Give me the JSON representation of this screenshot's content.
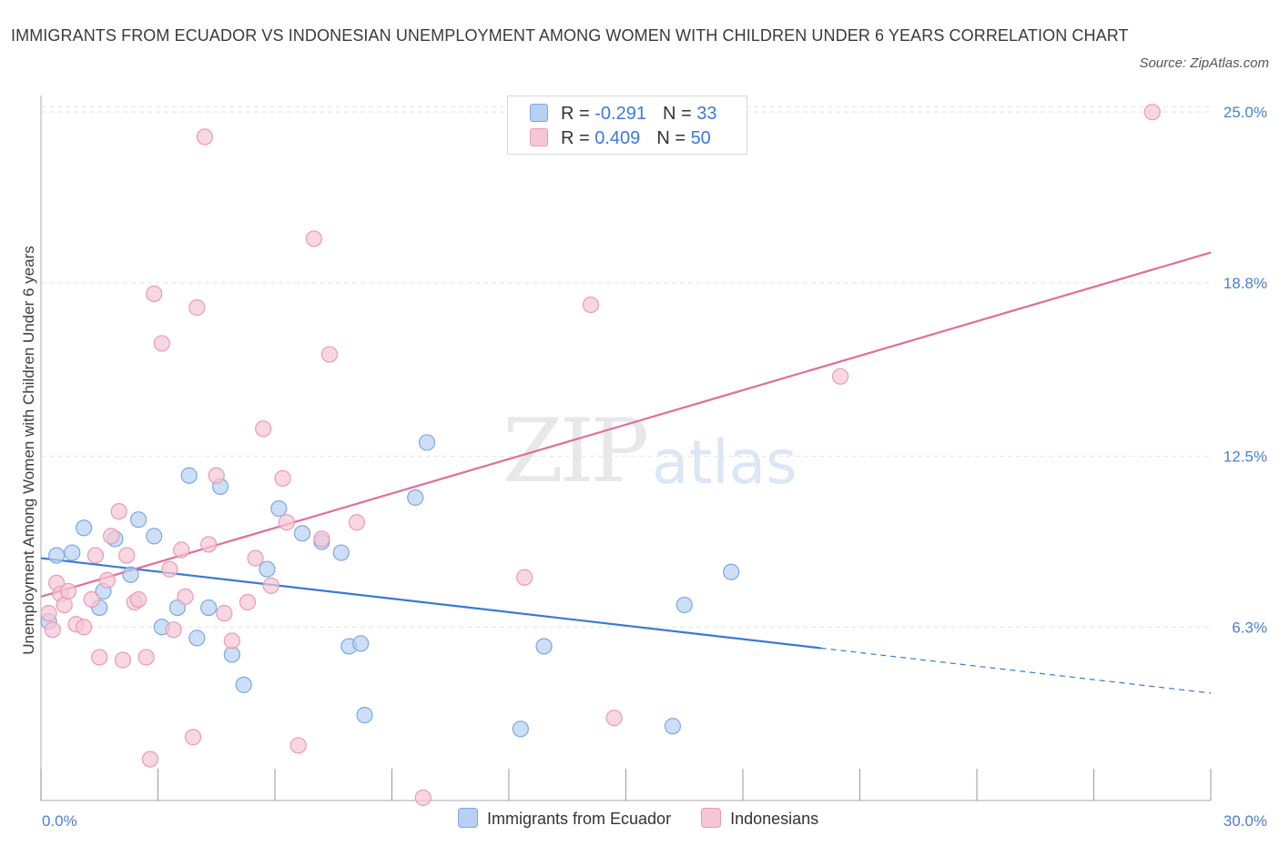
{
  "title": "IMMIGRANTS FROM ECUADOR VS INDONESIAN UNEMPLOYMENT AMONG WOMEN WITH CHILDREN UNDER 6 YEARS CORRELATION CHART",
  "source": "Source: ZipAtlas.com",
  "watermark": {
    "zip": "ZIP",
    "atlas": "atlas"
  },
  "colors": {
    "blue_fill": "#b8d1f3",
    "blue_stroke": "#7aa7e6",
    "blue_line": "#3a78d4",
    "pink_fill": "#f7c6d6",
    "pink_stroke": "#e99ab5",
    "pink_line": "#e06f98",
    "tick_label": "#4a7fd0",
    "grid": "#e3e3e3"
  },
  "legend": {
    "rows": [
      {
        "r_label": "R =",
        "r_value": "-0.291",
        "n_label": "N =",
        "n_value": "33"
      },
      {
        "r_label": "R =",
        "r_value": "0.409",
        "n_label": "N =",
        "n_value": "50"
      }
    ]
  },
  "chart_data": {
    "type": "scatter",
    "title": "IMMIGRANTS FROM ECUADOR VS INDONESIAN UNEMPLOYMENT AMONG WOMEN WITH CHILDREN UNDER 6 YEARS CORRELATION CHART",
    "xlabel": "",
    "ylabel": "Unemployment Among Women with Children Under 6 years",
    "xlim": [
      0,
      30
    ],
    "ylim": [
      0,
      25.6
    ],
    "x_tick_labels": [
      {
        "value": 0,
        "label": "0.0%"
      },
      {
        "value": 30,
        "label": "30.0%"
      }
    ],
    "y_tick_labels": [
      {
        "value": 6.3,
        "label": "6.3%"
      },
      {
        "value": 12.5,
        "label": "12.5%"
      },
      {
        "value": 18.8,
        "label": "18.8%"
      },
      {
        "value": 25.0,
        "label": "25.0%"
      }
    ],
    "grid": true,
    "legend_position": "bottom",
    "series": [
      {
        "name": "Immigrants from Ecuador",
        "color": "#b8d1f3",
        "points": [
          [
            0.2,
            6.5
          ],
          [
            0.4,
            8.9
          ],
          [
            0.8,
            9.0
          ],
          [
            1.1,
            9.9
          ],
          [
            1.5,
            7.0
          ],
          [
            1.6,
            7.6
          ],
          [
            1.9,
            9.5
          ],
          [
            2.3,
            8.2
          ],
          [
            2.5,
            10.2
          ],
          [
            2.9,
            9.6
          ],
          [
            3.1,
            6.3
          ],
          [
            3.5,
            7.0
          ],
          [
            3.8,
            11.8
          ],
          [
            4.0,
            5.9
          ],
          [
            4.3,
            7.0
          ],
          [
            4.6,
            11.4
          ],
          [
            4.9,
            5.3
          ],
          [
            5.2,
            4.2
          ],
          [
            5.8,
            8.4
          ],
          [
            6.1,
            10.6
          ],
          [
            6.7,
            9.7
          ],
          [
            7.2,
            9.4
          ],
          [
            7.7,
            9.0
          ],
          [
            7.9,
            5.6
          ],
          [
            8.2,
            5.7
          ],
          [
            8.3,
            3.1
          ],
          [
            9.6,
            11.0
          ],
          [
            9.9,
            13.0
          ],
          [
            12.3,
            2.6
          ],
          [
            12.9,
            5.6
          ],
          [
            16.2,
            2.7
          ],
          [
            16.5,
            7.1
          ],
          [
            17.7,
            8.3
          ]
        ]
      },
      {
        "name": "Indonesians",
        "color": "#f7c6d6",
        "points": [
          [
            0.2,
            6.8
          ],
          [
            0.3,
            6.2
          ],
          [
            0.4,
            7.9
          ],
          [
            0.5,
            7.5
          ],
          [
            0.6,
            7.1
          ],
          [
            0.7,
            7.6
          ],
          [
            0.9,
            6.4
          ],
          [
            1.1,
            6.3
          ],
          [
            1.3,
            7.3
          ],
          [
            1.4,
            8.9
          ],
          [
            1.5,
            5.2
          ],
          [
            1.7,
            8.0
          ],
          [
            1.8,
            9.6
          ],
          [
            2.0,
            10.5
          ],
          [
            2.1,
            5.1
          ],
          [
            2.2,
            8.9
          ],
          [
            2.4,
            7.2
          ],
          [
            2.5,
            7.3
          ],
          [
            2.7,
            5.2
          ],
          [
            2.8,
            1.5
          ],
          [
            2.9,
            18.4
          ],
          [
            3.1,
            16.6
          ],
          [
            3.3,
            8.4
          ],
          [
            3.4,
            6.2
          ],
          [
            3.6,
            9.1
          ],
          [
            3.7,
            7.4
          ],
          [
            3.9,
            2.3
          ],
          [
            4.0,
            17.9
          ],
          [
            4.2,
            24.1
          ],
          [
            4.3,
            9.3
          ],
          [
            4.5,
            11.8
          ],
          [
            4.7,
            6.8
          ],
          [
            4.9,
            5.8
          ],
          [
            5.3,
            7.2
          ],
          [
            5.5,
            8.8
          ],
          [
            5.7,
            13.5
          ],
          [
            5.9,
            7.8
          ],
          [
            6.2,
            11.7
          ],
          [
            6.3,
            10.1
          ],
          [
            6.6,
            2.0
          ],
          [
            7.0,
            20.4
          ],
          [
            7.2,
            9.5
          ],
          [
            7.4,
            16.2
          ],
          [
            8.1,
            10.1
          ],
          [
            9.8,
            0.1
          ],
          [
            12.4,
            8.1
          ],
          [
            14.1,
            18.0
          ],
          [
            14.7,
            3.0
          ],
          [
            20.5,
            15.4
          ],
          [
            28.5,
            25.0
          ]
        ]
      }
    ],
    "trend_lines": [
      {
        "name": "Immigrants from Ecuador",
        "x_start": 0,
        "y_start": 8.8,
        "x_solid_end": 20,
        "x_end": 30,
        "y_end": 3.9,
        "style": "solid-then-dashed"
      },
      {
        "name": "Indonesians",
        "x_start": 0,
        "y_start": 7.4,
        "x_end": 30,
        "y_end": 19.9,
        "style": "solid"
      }
    ]
  },
  "bottom_legend": {
    "items": [
      {
        "label": "Immigrants from Ecuador"
      },
      {
        "label": "Indonesians"
      }
    ]
  }
}
